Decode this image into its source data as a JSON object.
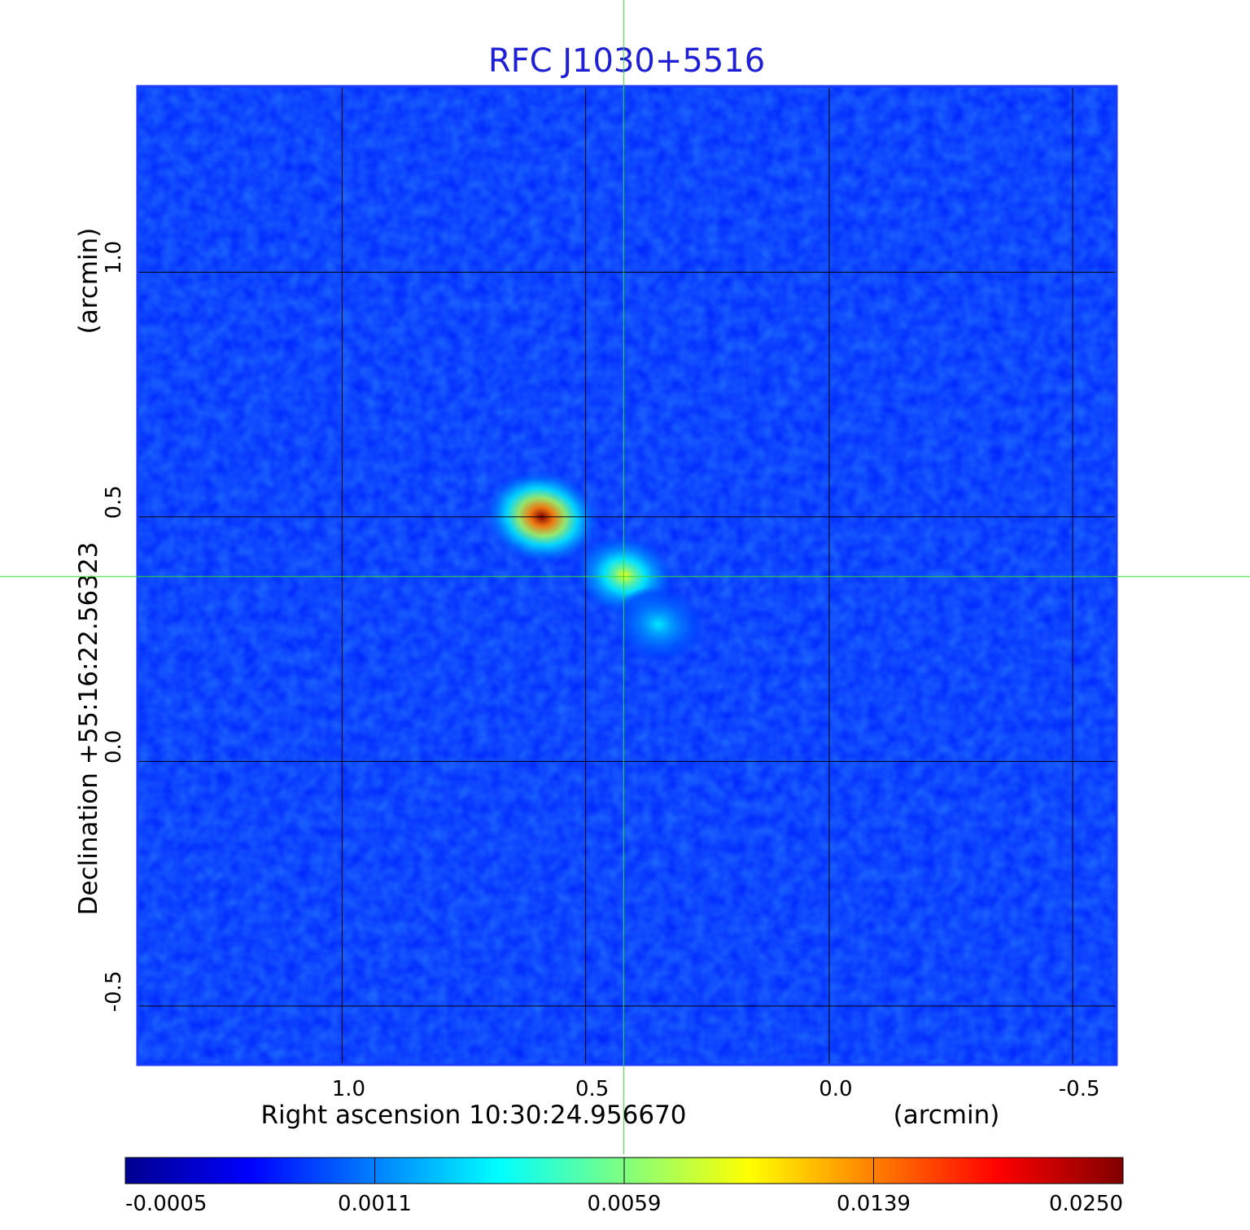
{
  "chart_data": {
    "type": "heatmap",
    "title": "RFC J1030+5516",
    "xlabel": "Right ascension  10:30:24.956670",
    "xunit": "(arcmin)",
    "ylabel": "Declination  +55:16:22.56323",
    "yunit": "(arcmin)",
    "xlim": [
      1.42,
      -0.59
    ],
    "ylim": [
      -0.62,
      1.38
    ],
    "x_direction": "decreasing-right",
    "x_ticks": [
      {
        "value": 1.0,
        "label": "1.0"
      },
      {
        "value": 0.5,
        "label": "0.5"
      },
      {
        "value": 0.0,
        "label": "0.0"
      },
      {
        "value": -0.5,
        "label": "-0.5"
      }
    ],
    "y_ticks": [
      {
        "value": 1.0,
        "label": "1.0"
      },
      {
        "value": 0.5,
        "label": "0.5"
      },
      {
        "value": 0.0,
        "label": "0.0"
      },
      {
        "value": -0.5,
        "label": "-0.5"
      }
    ],
    "grid": true,
    "crosshair": {
      "x": 0.422,
      "y": 0.378
    },
    "colorbar": {
      "position": "bottom",
      "colormap": "jet",
      "ticks": [
        "-0.0005",
        "0.0011",
        "0.0059",
        "0.0139",
        "0.0250"
      ],
      "min": -0.0005,
      "max": 0.025
    },
    "background_level": 0.0003,
    "components": [
      {
        "x": 0.59,
        "y": 0.5,
        "peak": 0.025
      },
      {
        "x": 0.42,
        "y": 0.38,
        "peak": 0.015
      },
      {
        "x": 0.35,
        "y": 0.28,
        "peak": 0.0085
      }
    ]
  },
  "colors": {
    "title": "#1f1fd6",
    "frame": "#1a3cff",
    "grid": "#000000",
    "crosshair": "#33dd33"
  }
}
